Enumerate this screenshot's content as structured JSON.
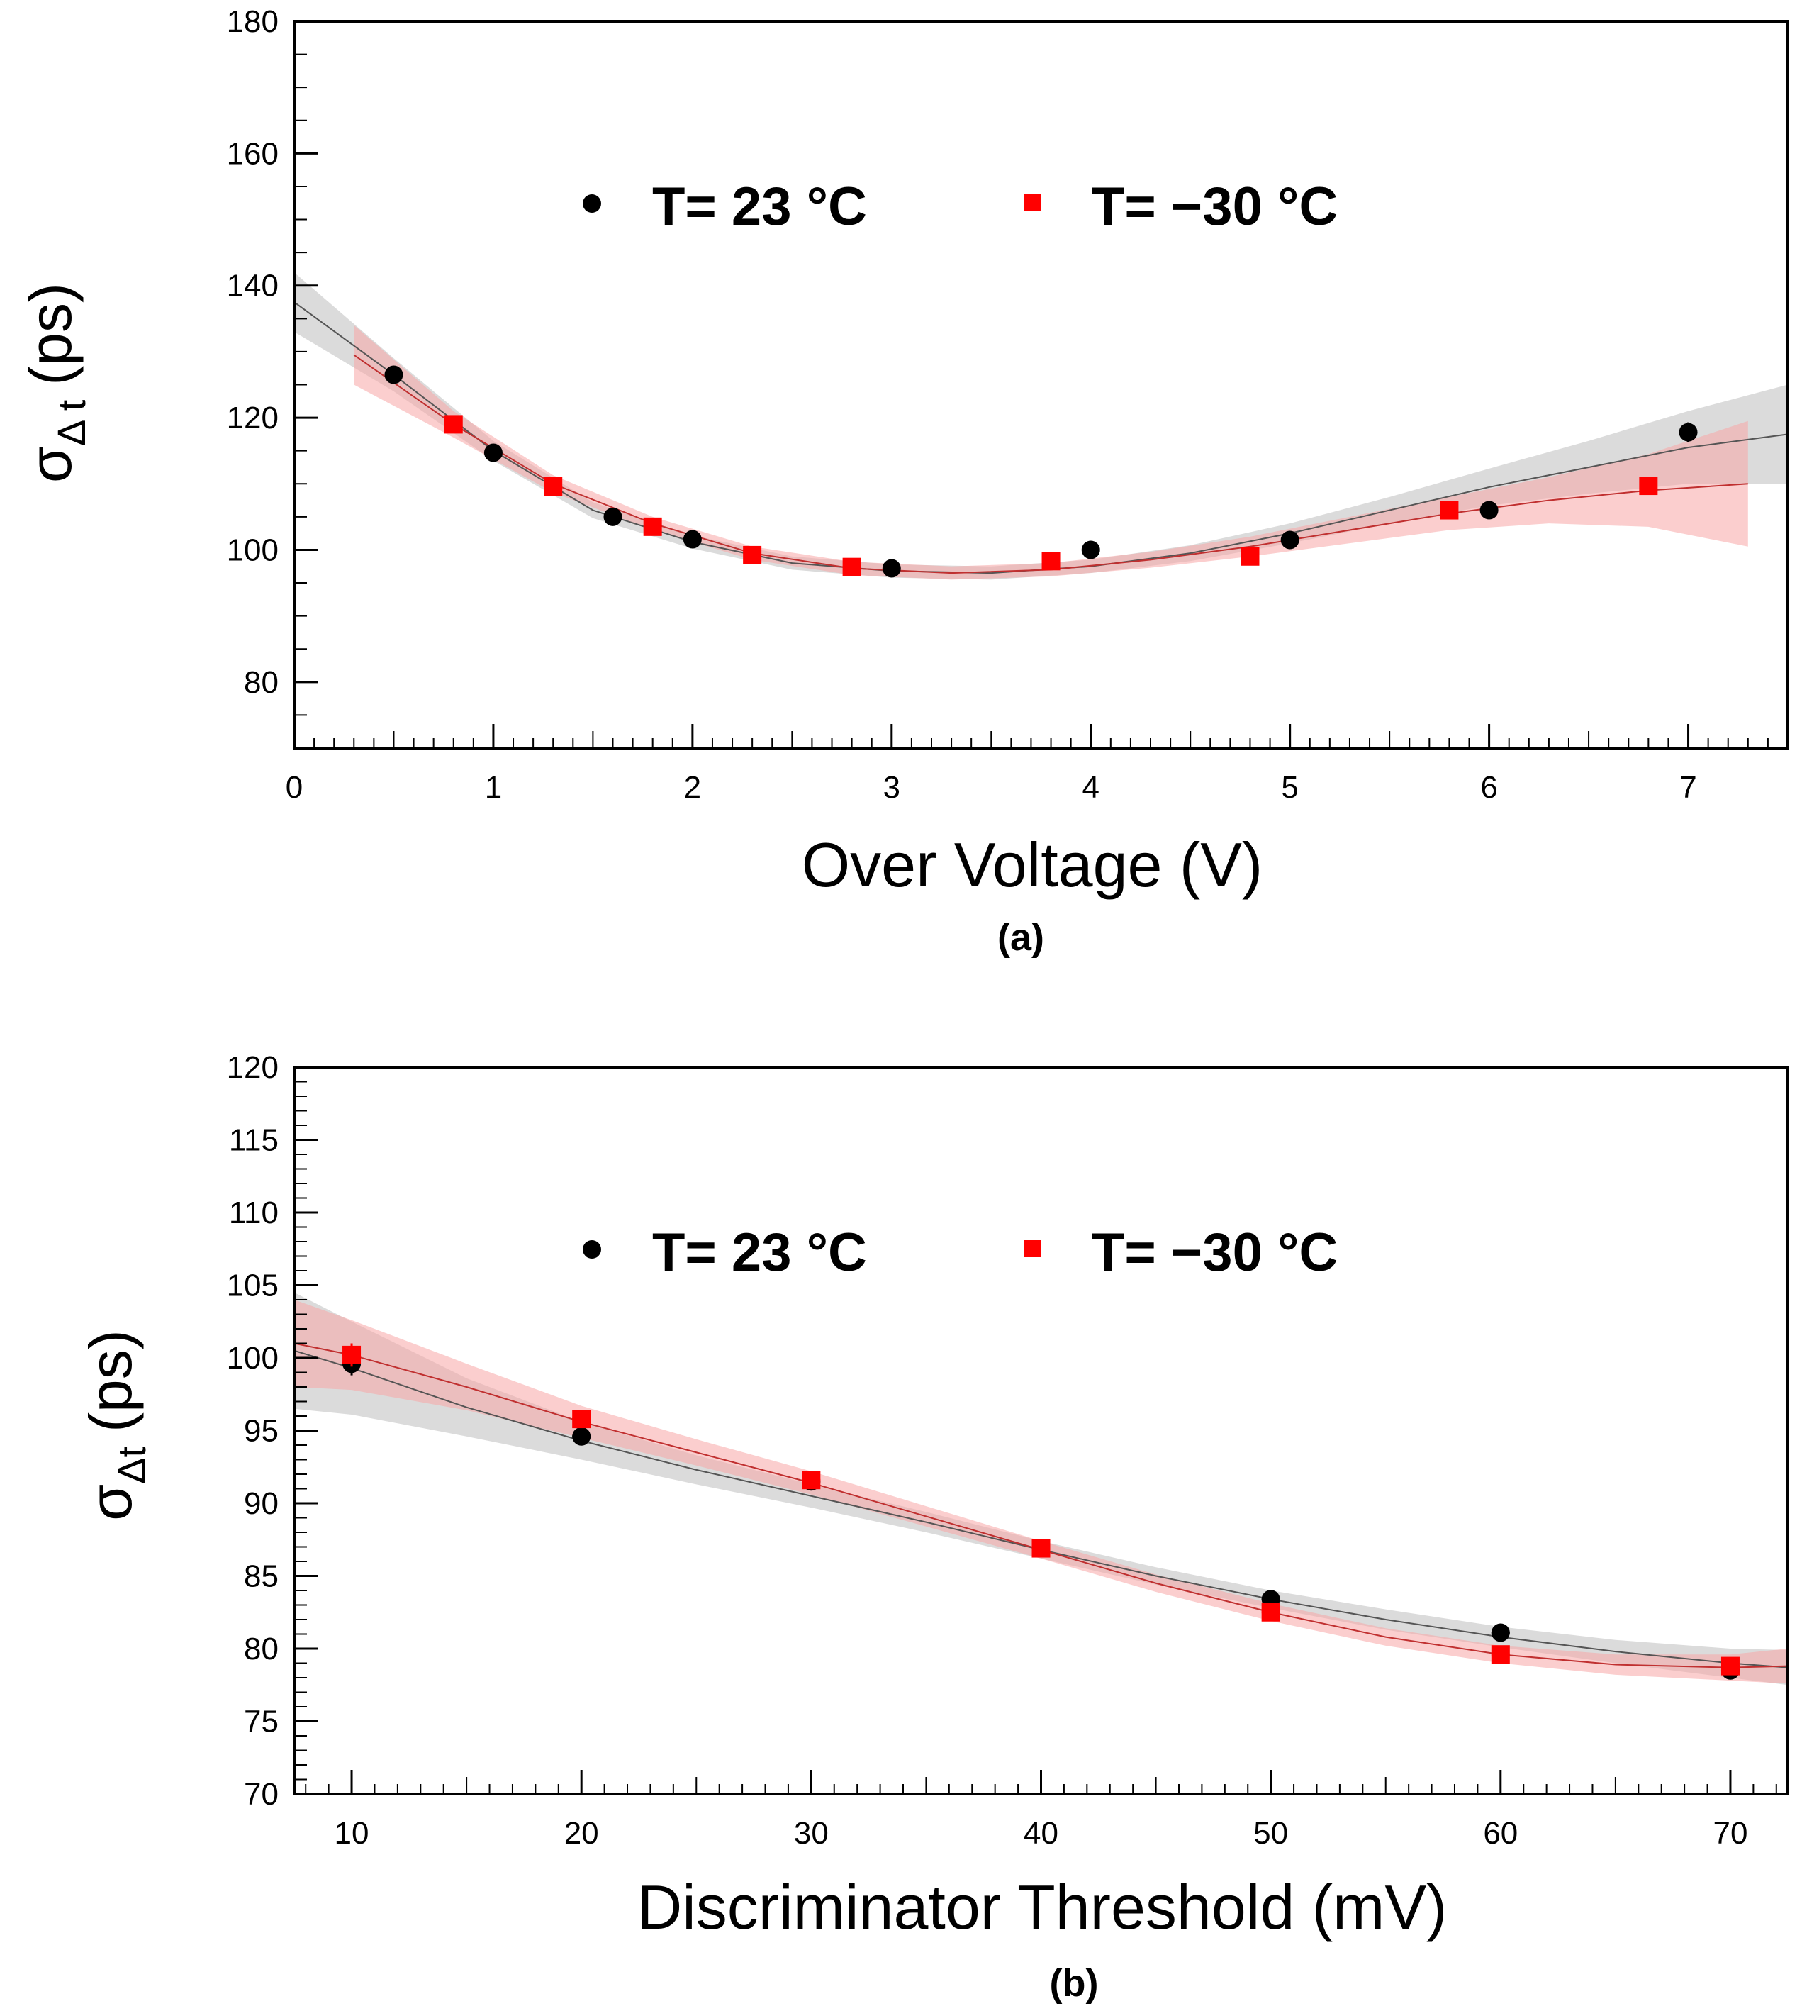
{
  "colors": {
    "series_23": "#000000",
    "series_m30": "#ff0000",
    "band_23": "#bdbdbd",
    "band_m30": "#f7a6a6",
    "axis": "#000000"
  },
  "chart_data": [
    {
      "type": "scatter",
      "panel_label": "(a)",
      "xlabel": "Over Voltage (V)",
      "ylabel_main": "σ",
      "ylabel_sub": "Δ t",
      "ylabel_unit": "(ps)",
      "xlim": [
        0,
        7.5
      ],
      "ylim": [
        70,
        180
      ],
      "xticks": [
        0,
        1,
        2,
        3,
        4,
        5,
        6,
        7
      ],
      "xtick_labels": [
        "0",
        "1",
        "2",
        "3",
        "4",
        "5",
        "6",
        "7"
      ],
      "yticks": [
        80,
        100,
        120,
        140,
        160,
        180
      ],
      "ytick_labels": [
        "80",
        "100",
        "120",
        "140",
        "160",
        "180"
      ],
      "x_minor_step": 0.1,
      "y_minor_step": 5,
      "legend": {
        "placement": "top-center",
        "entries": [
          "T= 23 °C",
          "T= −30 °C"
        ]
      },
      "series": [
        {
          "name": "T= 23 °C",
          "marker": "circle",
          "x": [
            0.5,
            1.0,
            1.6,
            2.0,
            3.0,
            4.0,
            5.0,
            6.0,
            7.0
          ],
          "y": [
            126.5,
            114.7,
            105.0,
            101.6,
            97.2,
            100.0,
            101.5,
            106.0,
            117.8
          ],
          "yerr": [
            0.8,
            0.8,
            0.8,
            0.8,
            0.8,
            0.8,
            0.8,
            1.0,
            1.5
          ],
          "fit": {
            "range": [
              0,
              7.5
            ],
            "x": [
              0,
              0.5,
              1,
              1.5,
              2,
              2.5,
              3,
              3.5,
              4,
              4.5,
              5,
              5.5,
              6,
              6.5,
              7,
              7.5
            ],
            "y": [
              137.5,
              126.5,
              115.0,
              106.0,
              101.2,
              98.0,
              96.8,
              96.5,
              97.5,
              99.5,
              102.5,
              106.0,
              109.5,
              112.5,
              115.5,
              117.5
            ],
            "band_halfwidth": [
              4.5,
              2.5,
              1.5,
              1.2,
              1.0,
              1.0,
              1.0,
              1.0,
              1.0,
              1.2,
              1.5,
              2.0,
              2.8,
              4.0,
              5.5,
              7.5
            ]
          }
        },
        {
          "name": "T= −30 °C",
          "marker": "square",
          "x": [
            0.8,
            1.3,
            1.8,
            2.3,
            2.8,
            3.8,
            4.8,
            5.8,
            6.8
          ],
          "y": [
            119.0,
            109.6,
            103.5,
            99.2,
            97.4,
            98.3,
            99.0,
            106.0,
            109.7
          ],
          "yerr": [
            0.8,
            0.8,
            0.8,
            0.8,
            0.8,
            0.8,
            0.8,
            0.8,
            1.2
          ],
          "fit": {
            "range": [
              0.3,
              7.3
            ],
            "x": [
              0.3,
              0.8,
              1.3,
              1.8,
              2.3,
              2.8,
              3.3,
              3.8,
              4.3,
              4.8,
              5.3,
              5.8,
              6.3,
              6.8,
              7.3
            ],
            "y": [
              129.5,
              119.0,
              110.0,
              104.0,
              99.5,
              97.2,
              96.5,
              97.0,
              98.5,
              100.5,
              103.0,
              105.5,
              107.5,
              109.0,
              110.0
            ],
            "band_halfwidth": [
              4.5,
              2.0,
              1.3,
              1.0,
              1.0,
              1.0,
              1.0,
              1.0,
              1.2,
              1.5,
              2.0,
              2.5,
              3.5,
              5.5,
              9.5
            ]
          }
        }
      ]
    },
    {
      "type": "scatter",
      "panel_label": "(b)",
      "xlabel": "Discriminator Threshold (mV)",
      "ylabel_main": "σ",
      "ylabel_sub": "Δt",
      "ylabel_unit": "(ps)",
      "xlim": [
        7.5,
        72.5
      ],
      "ylim": [
        70,
        120
      ],
      "xticks": [
        10,
        20,
        30,
        40,
        50,
        60,
        70
      ],
      "xtick_labels": [
        "10",
        "20",
        "30",
        "40",
        "50",
        "60",
        "70"
      ],
      "yticks": [
        70,
        75,
        80,
        85,
        90,
        95,
        100,
        105,
        110,
        115,
        120
      ],
      "ytick_labels": [
        "70",
        "75",
        "80",
        "85",
        "90",
        "95",
        "100",
        "105",
        "110",
        "115",
        "120"
      ],
      "x_minor_step": 1,
      "y_minor_step": 1,
      "legend": {
        "placement": "top-center",
        "entries": [
          "T= 23 °C",
          "T= −30 °C"
        ]
      },
      "series": [
        {
          "name": "T= 23 °C",
          "marker": "circle",
          "x": [
            10,
            20,
            30,
            40,
            50,
            60,
            70
          ],
          "y": [
            99.6,
            94.6,
            91.5,
            86.9,
            83.4,
            81.1,
            78.5
          ],
          "yerr": [
            0.8,
            0.4,
            0.4,
            0.4,
            0.4,
            0.4,
            0.4
          ],
          "xerr": [
            0.4,
            0.4,
            0.4,
            0.4,
            0.4,
            0.4,
            0.4
          ],
          "fit": {
            "range": [
              7.5,
              72.5
            ],
            "x": [
              7.5,
              10,
              15,
              20,
              25,
              30,
              35,
              40,
              45,
              50,
              55,
              60,
              65,
              70,
              72.5
            ],
            "y": [
              100.5,
              99.3,
              96.6,
              94.3,
              92.3,
              90.5,
              88.7,
              86.8,
              85.0,
              83.4,
              82.0,
              80.8,
              79.8,
              79.0,
              78.7
            ],
            "band_halfwidth": [
              4.0,
              3.2,
              2.0,
              1.3,
              1.0,
              0.8,
              0.7,
              0.6,
              0.6,
              0.6,
              0.7,
              0.7,
              0.8,
              1.0,
              1.2
            ]
          }
        },
        {
          "name": "T= −30 °C",
          "marker": "square",
          "x": [
            10,
            20,
            30,
            40,
            50,
            60,
            70
          ],
          "y": [
            100.2,
            95.8,
            91.6,
            86.9,
            82.5,
            79.6,
            78.8
          ],
          "yerr": [
            0.8,
            0.4,
            0.4,
            0.4,
            0.4,
            0.4,
            0.4
          ],
          "xerr": [
            0.4,
            0.4,
            0.4,
            0.4,
            0.4,
            0.4,
            0.4
          ],
          "fit": {
            "range": [
              7.5,
              72.5
            ],
            "x": [
              7.5,
              10,
              15,
              20,
              25,
              30,
              35,
              40,
              45,
              50,
              55,
              60,
              65,
              70,
              72.5
            ],
            "y": [
              101.0,
              100.2,
              98.0,
              95.6,
              93.5,
              91.4,
              89.1,
              86.8,
              84.5,
              82.5,
              80.8,
              79.6,
              78.9,
              78.7,
              78.8
            ],
            "band_halfwidth": [
              3.0,
              2.4,
              1.6,
              1.1,
              0.9,
              0.8,
              0.7,
              0.6,
              0.6,
              0.6,
              0.6,
              0.6,
              0.7,
              0.9,
              1.2
            ]
          }
        }
      ]
    }
  ]
}
